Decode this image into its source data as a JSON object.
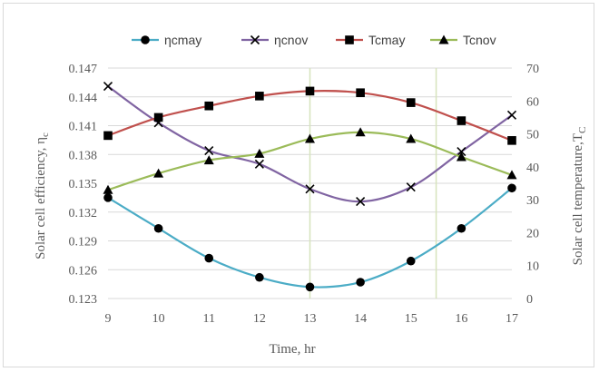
{
  "chart_data": {
    "type": "line",
    "x": [
      9,
      10,
      11,
      12,
      13,
      14,
      15,
      16,
      17
    ],
    "xlabel": "Time, hr",
    "ylabel_left": "Solar cell efficiency, η",
    "ylabel_left_sub": "c",
    "ylabel_right": "Solar cell temperature,T",
    "ylabel_right_sub": "C",
    "ylim_left": [
      0.123,
      0.147
    ],
    "yticks_left": [
      "0.123",
      "0.126",
      "0.129",
      "0.132",
      "0.135",
      "0.138",
      "0.141",
      "0.144",
      "0.147"
    ],
    "ylim_right": [
      0,
      70
    ],
    "yticks_right": [
      "0",
      "10",
      "20",
      "30",
      "40",
      "50",
      "60",
      "70"
    ],
    "xticks": [
      "9",
      "10",
      "11",
      "12",
      "13",
      "14",
      "15",
      "16",
      "17"
    ],
    "vertical_markers_x": [
      13,
      15.5
    ],
    "legend_position": "top",
    "series": [
      {
        "name": "ηcmay",
        "axis": "left",
        "marker": "circle",
        "color": "#4bacc6",
        "values": [
          0.1335,
          0.1303,
          0.1272,
          0.1252,
          0.1242,
          0.1247,
          0.1269,
          0.1303,
          0.1345
        ]
      },
      {
        "name": "ηcnov",
        "axis": "left",
        "marker": "x",
        "color": "#8064a2",
        "values": [
          0.1451,
          0.1413,
          0.1384,
          0.137,
          0.1344,
          0.1331,
          0.1346,
          0.1383,
          0.1421
        ]
      },
      {
        "name": "Tcmay",
        "axis": "right",
        "marker": "square",
        "color": "#c0504d",
        "values": [
          49.5,
          55,
          58.5,
          61.5,
          63,
          62.5,
          59.5,
          54,
          48
        ]
      },
      {
        "name": "Tcnov",
        "axis": "right",
        "marker": "triangle",
        "color": "#9bbb59",
        "values": [
          33,
          38,
          42,
          44,
          48.5,
          50.5,
          48.5,
          43,
          37.5
        ]
      }
    ]
  }
}
